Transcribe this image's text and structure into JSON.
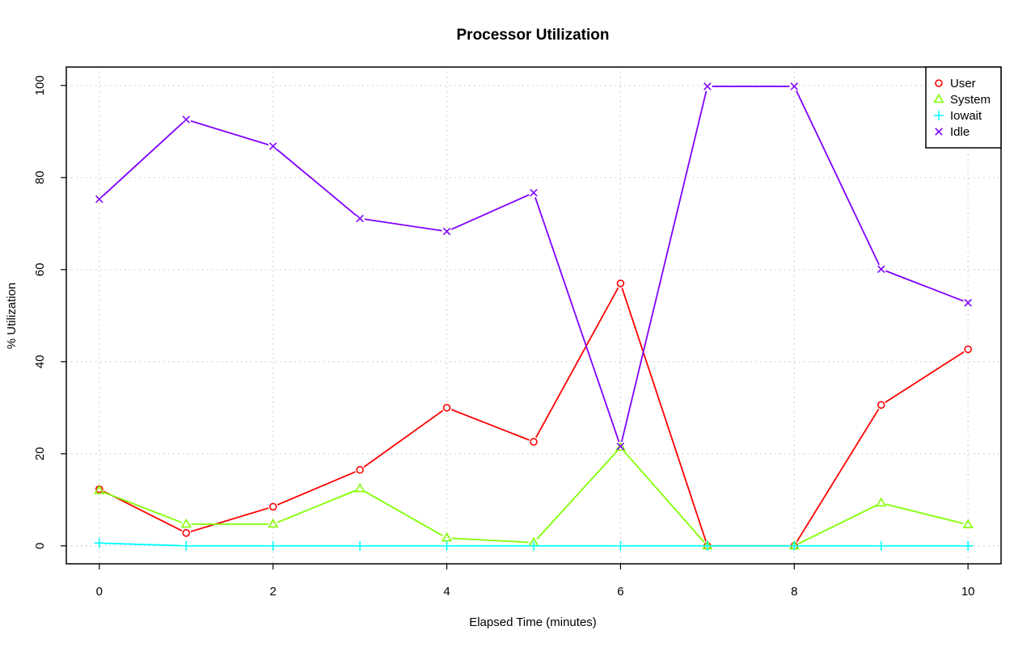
{
  "chart_data": {
    "type": "line",
    "title": "Processor Utilization",
    "xlabel": "Elapsed Time (minutes)",
    "ylabel": "% Utilization",
    "x": [
      0,
      1,
      2,
      3,
      4,
      5,
      6,
      7,
      8,
      9,
      10
    ],
    "xlim": [
      -0.38,
      10.38
    ],
    "ylim": [
      -3.9,
      104
    ],
    "x_ticks": [
      0,
      2,
      4,
      6,
      8,
      10
    ],
    "y_ticks": [
      0,
      20,
      40,
      60,
      80,
      100
    ],
    "x_tick_labels": [
      "0",
      "2",
      "4",
      "6",
      "8",
      "10"
    ],
    "y_tick_labels": [
      "0",
      "20",
      "40",
      "60",
      "80",
      "100"
    ],
    "grid": true,
    "legend_position": "top-right",
    "series": [
      {
        "name": "User",
        "color": "#ff0000",
        "marker": "circle",
        "values": [
          12.3,
          2.8,
          8.5,
          16.5,
          30.0,
          22.6,
          57.0,
          0,
          0,
          30.6,
          42.7
        ]
      },
      {
        "name": "System",
        "color": "#80ff00",
        "marker": "triangle",
        "values": [
          12.0,
          4.7,
          4.7,
          12.4,
          1.7,
          0.7,
          21.4,
          0,
          0,
          9.3,
          4.6
        ]
      },
      {
        "name": "Iowait",
        "color": "#00ffff",
        "marker": "plus",
        "values": [
          0.6,
          0,
          0,
          0,
          0,
          0,
          0,
          0,
          0,
          0,
          0
        ]
      },
      {
        "name": "Idle",
        "color": "#8000ff",
        "marker": "cross",
        "values": [
          75.3,
          92.6,
          86.8,
          71.1,
          68.3,
          76.7,
          21.6,
          99.8,
          99.8,
          60.1,
          52.8
        ]
      }
    ]
  }
}
